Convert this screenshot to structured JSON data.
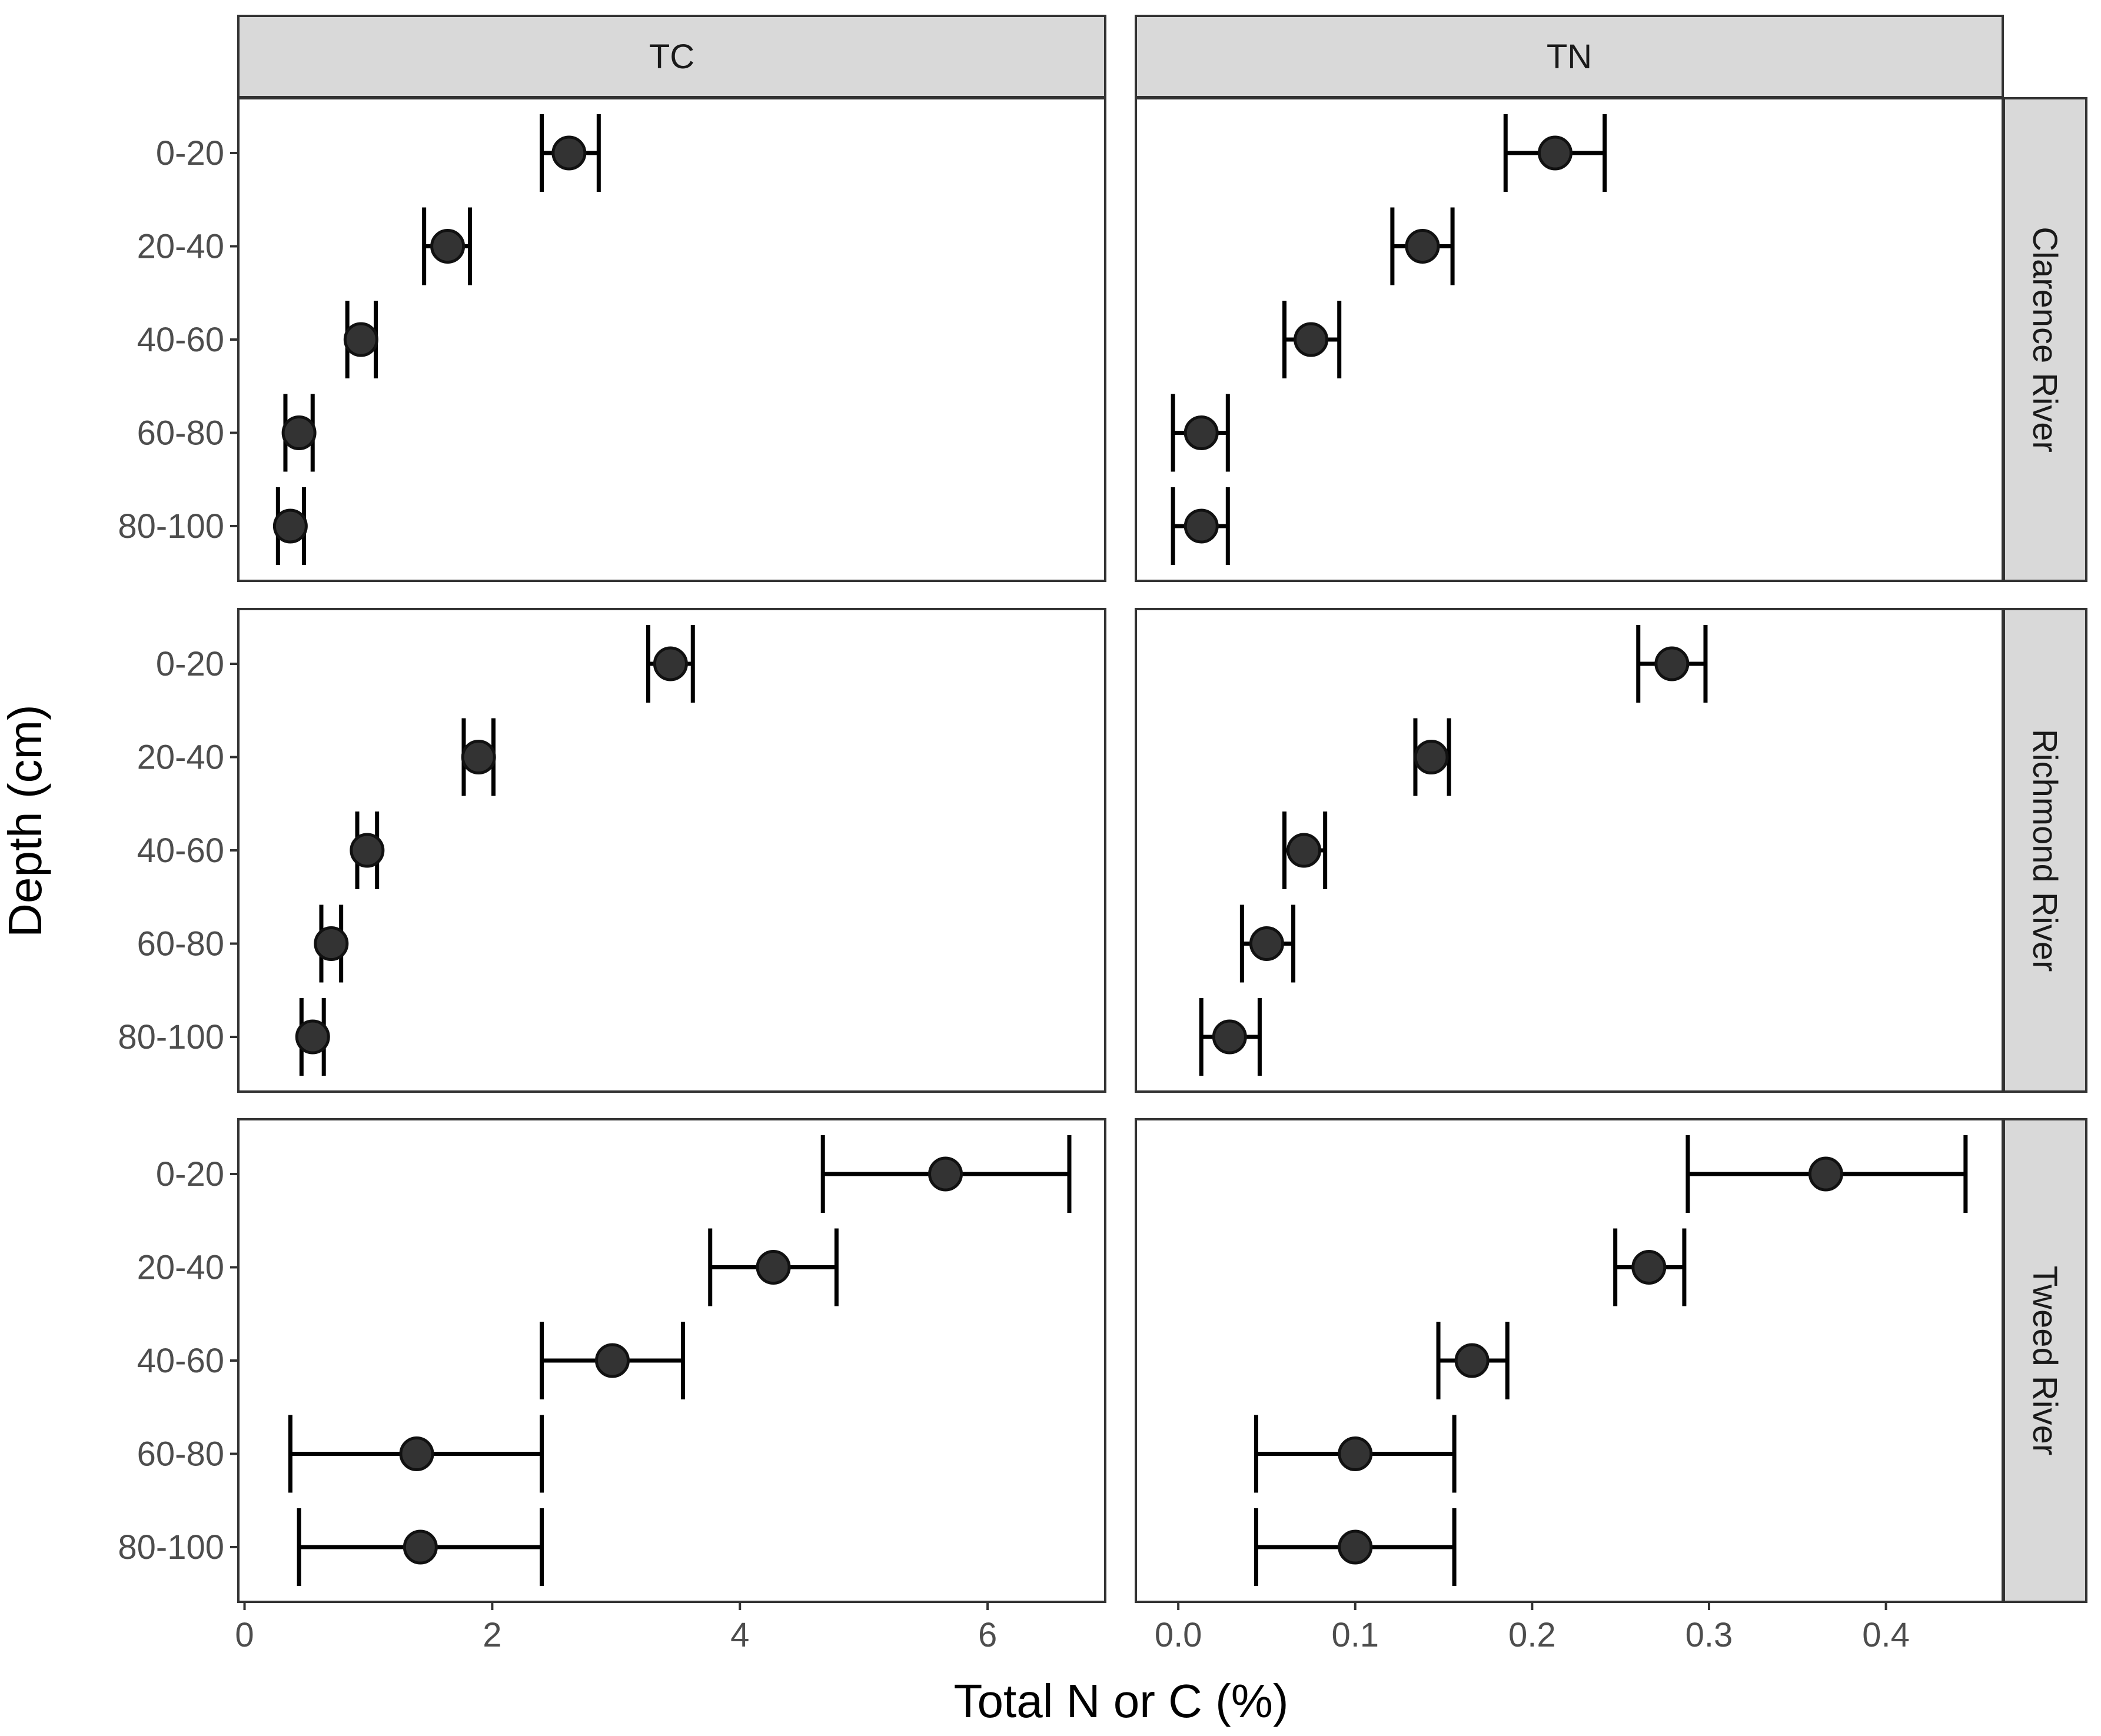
{
  "chart_data": {
    "type": "scatter",
    "subtype": "faceted point with horizontal error bars",
    "xlabel": "Total N or C (%)",
    "ylabel": "Depth (cm)",
    "depths": [
      "0-20",
      "20-40",
      "40-60",
      "60-80",
      "80-100"
    ],
    "columns": [
      {
        "label": "TC",
        "xlim": [
          -0.05,
          6.95
        ],
        "ticks": [
          0,
          2,
          4,
          6
        ],
        "tick_labels": [
          "0",
          "2",
          "4",
          "6"
        ]
      },
      {
        "label": "TN",
        "xlim": [
          -0.024,
          0.466
        ],
        "ticks": [
          0.0,
          0.1,
          0.2,
          0.3,
          0.4
        ],
        "tick_labels": [
          "0.0",
          "0.1",
          "0.2",
          "0.3",
          "0.4"
        ]
      }
    ],
    "rows": [
      {
        "label": "Clarence River",
        "TC": [
          {
            "depth": "0-20",
            "mean": 2.62,
            "lower": 2.4,
            "upper": 2.86
          },
          {
            "depth": "20-40",
            "mean": 1.64,
            "lower": 1.45,
            "upper": 1.82
          },
          {
            "depth": "40-60",
            "mean": 0.94,
            "lower": 0.83,
            "upper": 1.06
          },
          {
            "depth": "60-80",
            "mean": 0.44,
            "lower": 0.33,
            "upper": 0.55
          },
          {
            "depth": "80-100",
            "mean": 0.37,
            "lower": 0.27,
            "upper": 0.48
          }
        ],
        "TN": [
          {
            "depth": "0-20",
            "mean": 0.213,
            "lower": 0.185,
            "upper": 0.241
          },
          {
            "depth": "20-40",
            "mean": 0.138,
            "lower": 0.121,
            "upper": 0.155
          },
          {
            "depth": "40-60",
            "mean": 0.075,
            "lower": 0.06,
            "upper": 0.091
          },
          {
            "depth": "60-80",
            "mean": 0.013,
            "lower": -0.003,
            "upper": 0.028
          },
          {
            "depth": "80-100",
            "mean": 0.013,
            "lower": -0.003,
            "upper": 0.028
          }
        ]
      },
      {
        "label": "Richmond River",
        "TC": [
          {
            "depth": "0-20",
            "mean": 3.44,
            "lower": 3.26,
            "upper": 3.62
          },
          {
            "depth": "20-40",
            "mean": 1.89,
            "lower": 1.77,
            "upper": 2.01
          },
          {
            "depth": "40-60",
            "mean": 0.99,
            "lower": 0.91,
            "upper": 1.07
          },
          {
            "depth": "60-80",
            "mean": 0.7,
            "lower": 0.62,
            "upper": 0.78
          },
          {
            "depth": "80-100",
            "mean": 0.55,
            "lower": 0.46,
            "upper": 0.64
          }
        ],
        "TN": [
          {
            "depth": "0-20",
            "mean": 0.279,
            "lower": 0.26,
            "upper": 0.298
          },
          {
            "depth": "20-40",
            "mean": 0.143,
            "lower": 0.134,
            "upper": 0.153
          },
          {
            "depth": "40-60",
            "mean": 0.071,
            "lower": 0.06,
            "upper": 0.083
          },
          {
            "depth": "60-80",
            "mean": 0.05,
            "lower": 0.036,
            "upper": 0.065
          },
          {
            "depth": "80-100",
            "mean": 0.029,
            "lower": 0.013,
            "upper": 0.046
          }
        ]
      },
      {
        "label": "Tweed River",
        "TC": [
          {
            "depth": "0-20",
            "mean": 5.66,
            "lower": 4.67,
            "upper": 6.66
          },
          {
            "depth": "20-40",
            "mean": 4.27,
            "lower": 3.76,
            "upper": 4.78
          },
          {
            "depth": "40-60",
            "mean": 2.97,
            "lower": 2.4,
            "upper": 3.54
          },
          {
            "depth": "60-80",
            "mean": 1.39,
            "lower": 0.37,
            "upper": 2.4
          },
          {
            "depth": "80-100",
            "mean": 1.42,
            "lower": 0.44,
            "upper": 2.4
          }
        ],
        "TN": [
          {
            "depth": "0-20",
            "mean": 0.366,
            "lower": 0.288,
            "upper": 0.445
          },
          {
            "depth": "20-40",
            "mean": 0.266,
            "lower": 0.247,
            "upper": 0.286
          },
          {
            "depth": "40-60",
            "mean": 0.166,
            "lower": 0.147,
            "upper": 0.186
          },
          {
            "depth": "60-80",
            "mean": 0.1,
            "lower": 0.044,
            "upper": 0.156
          },
          {
            "depth": "80-100",
            "mean": 0.1,
            "lower": 0.044,
            "upper": 0.156
          }
        ]
      }
    ],
    "grid": false,
    "legend": "none",
    "colors": {
      "point_fill": "#333333",
      "point_stroke": "#111111",
      "errorbar": "#000000",
      "strip_fill": "#d9d9d9",
      "panel_border": "#333333"
    }
  }
}
